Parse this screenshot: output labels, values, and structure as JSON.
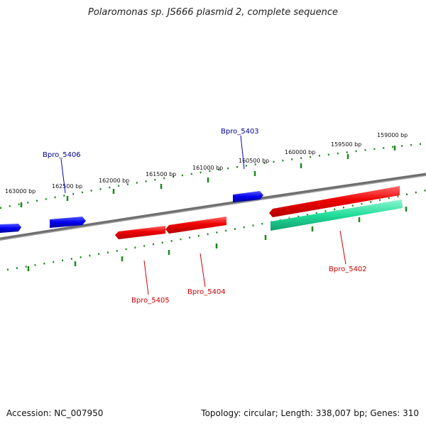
{
  "title": "Polaromonas sp. JS666 plasmid 2, complete sequence",
  "footer": {
    "accession": "Accession: NC_007950",
    "summary": "Topology: circular; Length: 338,007 bp; Genes: 310"
  },
  "colors": {
    "forward_gene": "#0000ee",
    "reverse_gene": "#ee0000",
    "rna_gene": "#22dd99",
    "backbone": "#808080",
    "ticks": "#1a8a1a",
    "forward_label": "#000099",
    "reverse_label": "#cc0000"
  },
  "scale": {
    "unit": "bp",
    "labels": [
      {
        "bp": 163000,
        "text": "163000 bp"
      },
      {
        "bp": 162500,
        "text": "162500 bp"
      },
      {
        "bp": 162000,
        "text": "162000 bp"
      },
      {
        "bp": 161500,
        "text": "161500 bp"
      },
      {
        "bp": 161000,
        "text": "161000 bp"
      },
      {
        "bp": 160500,
        "text": "160500 bp"
      },
      {
        "bp": 160000,
        "text": "160000 bp"
      },
      {
        "bp": 159500,
        "text": "159500 bp"
      },
      {
        "bp": 159000,
        "text": "159000 bp"
      }
    ]
  },
  "genes": [
    {
      "label": "",
      "strand": "forward",
      "kind": "unlabeled"
    },
    {
      "label": "Bpro_5406",
      "strand": "forward",
      "kind": "labeled"
    },
    {
      "label": "Bpro_5403",
      "strand": "forward",
      "kind": "labeled"
    },
    {
      "label": "Bpro_5405",
      "strand": "reverse",
      "kind": "labeled"
    },
    {
      "label": "Bpro_5404",
      "strand": "reverse",
      "kind": "labeled"
    },
    {
      "label": "",
      "strand": "reverse",
      "kind": "unlabeled-long"
    },
    {
      "label": "Bpro_5402",
      "strand": "reverse",
      "kind": "labeled-rna"
    }
  ]
}
